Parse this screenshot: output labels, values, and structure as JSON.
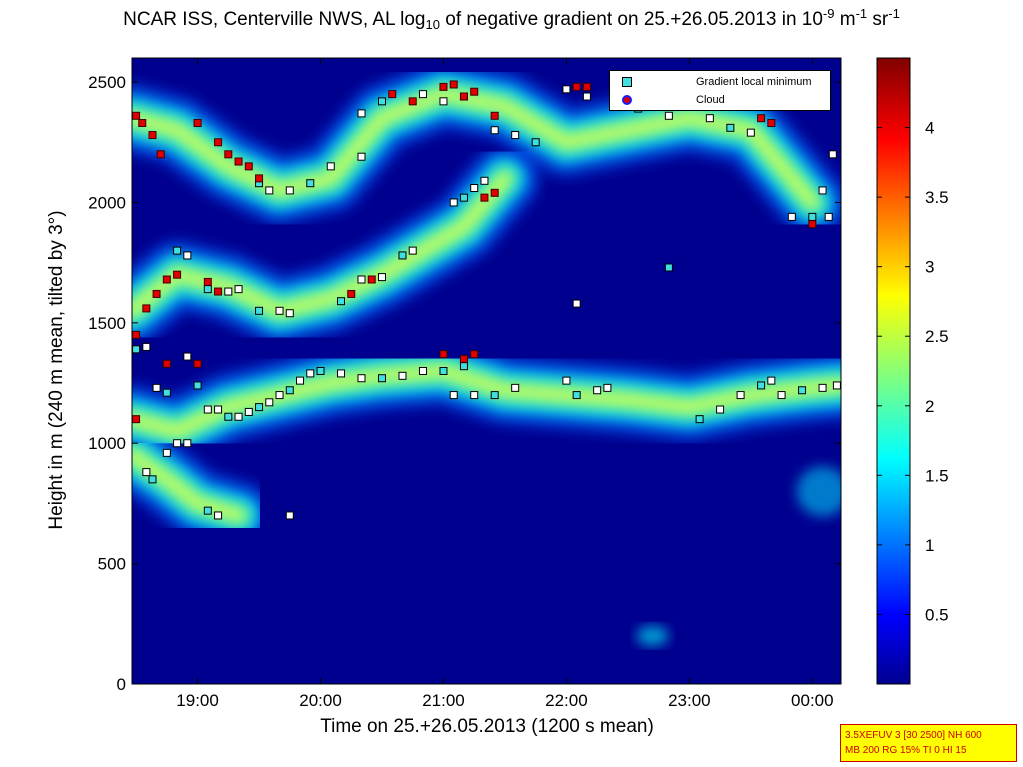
{
  "title": {
    "prefix": "NCAR ISS, Centerville NWS, AL log",
    "sub": "10",
    "middle": " of negative gradient on 25.+26.05.2013 in 10",
    "sup1": "-9",
    "unit1": " m",
    "sup2": "-1",
    "unit2": " sr",
    "sup3": "-1"
  },
  "stamp": {
    "line1": "3.5XEFUV 3 [30 2500] NH 600",
    "line2": "MB 200 RG 15% TI 0 HI 15"
  },
  "colors": {
    "background_field": "#00008f",
    "gradient_marker_fill": "#ffffff",
    "gradient_marker_cyan": "#40e0e0",
    "cloud_marker": "#e00000"
  },
  "chart_data": {
    "type": "heatmap",
    "title": "NCAR ISS, Centerville NWS, AL log10 of negative gradient on 25.+26.05.2013 in 10^-9 m^-1 sr^-1",
    "xlabel": "Time on 25.+26.05.2013 (1200 s mean)",
    "ylabel": "Height in m (240 m mean, tilted by 3°)",
    "xlim": [
      "18:28",
      "00:14"
    ],
    "ylim": [
      0,
      2600
    ],
    "x_ticks": [
      "19:00",
      "20:00",
      "21:00",
      "22:00",
      "23:00",
      "00:00"
    ],
    "y_ticks": [
      0,
      500,
      1000,
      1500,
      2000,
      2500
    ],
    "colorbar": {
      "range": [
        0,
        4.5
      ],
      "ticks": [
        "0.5",
        "1",
        "1.5",
        "2",
        "2.5",
        "3",
        "3.5",
        "4"
      ],
      "colormap": "jet"
    },
    "legend": {
      "placement": "top-right",
      "entries": [
        "Gradient local minimum",
        "Cloud"
      ]
    },
    "layers": [
      {
        "time": [
          "18:28",
          "18:50",
          "19:15",
          "19:40",
          "20:05",
          "20:30",
          "21:00",
          "21:30",
          "22:00",
          "22:30",
          "23:00",
          "23:30",
          "00:00",
          "00:14"
        ],
        "height": [
          1100,
          1050,
          1150,
          1200,
          1250,
          1280,
          1300,
          1220,
          1200,
          1180,
          1150,
          1200,
          1230,
          1240
        ]
      },
      {
        "time": [
          "18:28",
          "18:50",
          "19:15",
          "19:40",
          "20:05",
          "20:30",
          "20:50",
          "21:10",
          "21:30"
        ],
        "height": [
          1550,
          1700,
          1650,
          1550,
          1600,
          1700,
          1800,
          1900,
          2100
        ]
      },
      {
        "time": [
          "18:28",
          "18:50",
          "19:15",
          "19:40",
          "20:05",
          "20:30",
          "21:00",
          "21:30",
          "22:00",
          "22:30",
          "23:00",
          "23:30",
          "00:00"
        ],
        "height": [
          2350,
          2300,
          2150,
          2050,
          2100,
          2350,
          2450,
          2400,
          2250,
          2300,
          2350,
          2300,
          2000
        ]
      },
      {
        "time": [
          "18:28",
          "18:45",
          "19:00",
          "19:20"
        ],
        "height": [
          950,
          850,
          750,
          700
        ]
      }
    ],
    "gradient_minimum": [
      {
        "t": "18:30",
        "h": 1390
      },
      {
        "t": "18:35",
        "h": 1400
      },
      {
        "t": "18:40",
        "h": 1230
      },
      {
        "t": "18:45",
        "h": 1210
      },
      {
        "t": "18:50",
        "h": 1000
      },
      {
        "t": "18:55",
        "h": 1360
      },
      {
        "t": "19:00",
        "h": 1240
      },
      {
        "t": "19:05",
        "h": 1140
      },
      {
        "t": "19:10",
        "h": 1140
      },
      {
        "t": "19:15",
        "h": 1110
      },
      {
        "t": "19:20",
        "h": 1110
      },
      {
        "t": "19:25",
        "h": 1130
      },
      {
        "t": "19:30",
        "h": 1150
      },
      {
        "t": "19:35",
        "h": 1170
      },
      {
        "t": "19:40",
        "h": 1200
      },
      {
        "t": "19:45",
        "h": 1220
      },
      {
        "t": "19:50",
        "h": 1260
      },
      {
        "t": "19:55",
        "h": 1290
      },
      {
        "t": "20:00",
        "h": 1300
      },
      {
        "t": "20:10",
        "h": 1290
      },
      {
        "t": "20:20",
        "h": 1270
      },
      {
        "t": "20:30",
        "h": 1270
      },
      {
        "t": "20:40",
        "h": 1280
      },
      {
        "t": "20:50",
        "h": 1300
      },
      {
        "t": "21:00",
        "h": 1300
      },
      {
        "t": "21:05",
        "h": 1200
      },
      {
        "t": "21:15",
        "h": 1200
      },
      {
        "t": "21:25",
        "h": 1200
      },
      {
        "t": "21:35",
        "h": 1230
      },
      {
        "t": "22:00",
        "h": 1260
      },
      {
        "t": "22:05",
        "h": 1200
      },
      {
        "t": "22:15",
        "h": 1220
      },
      {
        "t": "22:20",
        "h": 1230
      },
      {
        "t": "23:05",
        "h": 1100
      },
      {
        "t": "23:15",
        "h": 1140
      },
      {
        "t": "23:25",
        "h": 1200
      },
      {
        "t": "23:35",
        "h": 1240
      },
      {
        "t": "23:40",
        "h": 1260
      },
      {
        "t": "23:45",
        "h": 1200
      },
      {
        "t": "23:55",
        "h": 1220
      },
      {
        "t": "00:05",
        "h": 1230
      },
      {
        "t": "00:12",
        "h": 1240
      },
      {
        "t": "19:05",
        "h": 1640
      },
      {
        "t": "19:15",
        "h": 1630
      },
      {
        "t": "19:20",
        "h": 1640
      },
      {
        "t": "19:30",
        "h": 1550
      },
      {
        "t": "19:40",
        "h": 1550
      },
      {
        "t": "19:45",
        "h": 1540
      },
      {
        "t": "20:10",
        "h": 1590
      },
      {
        "t": "20:20",
        "h": 1680
      },
      {
        "t": "20:30",
        "h": 1690
      },
      {
        "t": "20:40",
        "h": 1780
      },
      {
        "t": "20:45",
        "h": 1800
      },
      {
        "t": "21:05",
        "h": 2000
      },
      {
        "t": "21:10",
        "h": 2020
      },
      {
        "t": "21:15",
        "h": 2060
      },
      {
        "t": "21:20",
        "h": 2090
      },
      {
        "t": "19:30",
        "h": 2080
      },
      {
        "t": "19:35",
        "h": 2050
      },
      {
        "t": "19:45",
        "h": 2050
      },
      {
        "t": "19:55",
        "h": 2080
      },
      {
        "t": "20:05",
        "h": 2150
      },
      {
        "t": "20:20",
        "h": 2370
      },
      {
        "t": "20:30",
        "h": 2420
      },
      {
        "t": "20:50",
        "h": 2450
      },
      {
        "t": "21:00",
        "h": 2420
      },
      {
        "t": "21:10",
        "h": 2440
      },
      {
        "t": "21:25",
        "h": 2300
      },
      {
        "t": "21:35",
        "h": 2280
      },
      {
        "t": "21:45",
        "h": 2250
      },
      {
        "t": "22:00",
        "h": 2470
      },
      {
        "t": "22:10",
        "h": 2440
      },
      {
        "t": "22:35",
        "h": 2390
      },
      {
        "t": "22:50",
        "h": 2360
      },
      {
        "t": "23:10",
        "h": 2350
      },
      {
        "t": "23:20",
        "h": 2310
      },
      {
        "t": "23:30",
        "h": 2290
      },
      {
        "t": "23:50",
        "h": 1940
      },
      {
        "t": "00:00",
        "h": 1940
      },
      {
        "t": "00:08",
        "h": 1940
      },
      {
        "t": "18:35",
        "h": 880
      },
      {
        "t": "18:38",
        "h": 850
      },
      {
        "t": "18:45",
        "h": 960
      },
      {
        "t": "18:55",
        "h": 1000
      },
      {
        "t": "19:05",
        "h": 720
      },
      {
        "t": "19:10",
        "h": 700
      },
      {
        "t": "19:45",
        "h": 700
      },
      {
        "t": "18:50",
        "h": 1800
      },
      {
        "t": "18:55",
        "h": 1780
      },
      {
        "t": "22:05",
        "h": 1580
      },
      {
        "t": "22:50",
        "h": 1730
      },
      {
        "t": "00:05",
        "h": 2050
      },
      {
        "t": "00:10",
        "h": 2200
      },
      {
        "t": "21:10",
        "h": 1320
      },
      {
        "t": "20:20",
        "h": 2190
      }
    ],
    "cloud": [
      {
        "t": "18:30",
        "h": 2360
      },
      {
        "t": "18:33",
        "h": 2330
      },
      {
        "t": "18:38",
        "h": 2280
      },
      {
        "t": "18:42",
        "h": 2200
      },
      {
        "t": "19:00",
        "h": 2330
      },
      {
        "t": "19:10",
        "h": 2250
      },
      {
        "t": "19:15",
        "h": 2200
      },
      {
        "t": "19:20",
        "h": 2170
      },
      {
        "t": "19:25",
        "h": 2150
      },
      {
        "t": "19:30",
        "h": 2100
      },
      {
        "t": "18:30",
        "h": 1450
      },
      {
        "t": "18:35",
        "h": 1560
      },
      {
        "t": "18:40",
        "h": 1620
      },
      {
        "t": "18:45",
        "h": 1680
      },
      {
        "t": "18:50",
        "h": 1700
      },
      {
        "t": "18:45",
        "h": 1330
      },
      {
        "t": "19:05",
        "h": 1670
      },
      {
        "t": "19:10",
        "h": 1630
      },
      {
        "t": "18:30",
        "h": 1100
      },
      {
        "t": "19:00",
        "h": 1330
      },
      {
        "t": "20:35",
        "h": 2450
      },
      {
        "t": "20:45",
        "h": 2420
      },
      {
        "t": "21:00",
        "h": 2480
      },
      {
        "t": "21:05",
        "h": 2490
      },
      {
        "t": "21:10",
        "h": 2440
      },
      {
        "t": "21:15",
        "h": 2460
      },
      {
        "t": "21:20",
        "h": 2020
      },
      {
        "t": "21:25",
        "h": 2040
      },
      {
        "t": "21:00",
        "h": 1370
      },
      {
        "t": "21:10",
        "h": 1350
      },
      {
        "t": "21:15",
        "h": 1370
      },
      {
        "t": "21:25",
        "h": 2360
      },
      {
        "t": "22:05",
        "h": 2480
      },
      {
        "t": "22:10",
        "h": 2480
      },
      {
        "t": "23:35",
        "h": 2350
      },
      {
        "t": "23:40",
        "h": 2330
      },
      {
        "t": "00:00",
        "h": 1910
      },
      {
        "t": "20:15",
        "h": 1620
      },
      {
        "t": "20:25",
        "h": 1680
      }
    ]
  }
}
